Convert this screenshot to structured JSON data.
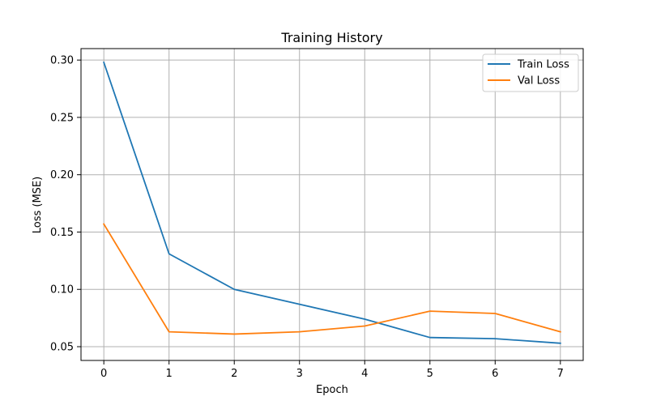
{
  "chart_data": {
    "type": "line",
    "title": "Training History",
    "xlabel": "Epoch",
    "ylabel": "Loss (MSE)",
    "x": [
      0,
      1,
      2,
      3,
      4,
      5,
      6,
      7
    ],
    "xticks": [
      "0",
      "1",
      "2",
      "3",
      "4",
      "5",
      "6",
      "7"
    ],
    "yticks": [
      "0.05",
      "0.10",
      "0.15",
      "0.20",
      "0.25",
      "0.30"
    ],
    "xlim": [
      -0.35,
      7.35
    ],
    "ylim": [
      0.038,
      0.31
    ],
    "grid": true,
    "legend_position": "top-right",
    "series": [
      {
        "name": "Train Loss",
        "color": "#1f77b4",
        "values": [
          0.298,
          0.131,
          0.1,
          0.087,
          0.074,
          0.058,
          0.057,
          0.053
        ]
      },
      {
        "name": "Val Loss",
        "color": "#ff7f0e",
        "values": [
          0.157,
          0.063,
          0.061,
          0.063,
          0.068,
          0.081,
          0.079,
          0.063
        ]
      }
    ]
  }
}
